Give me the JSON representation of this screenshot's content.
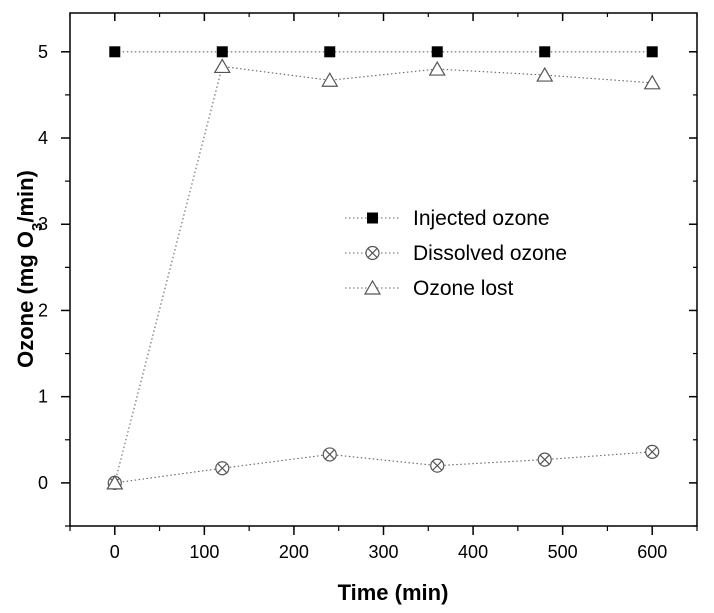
{
  "chart_data": {
    "type": "scatter",
    "xlabel": "Time (min)",
    "ylabel_parts": {
      "before": "Ozone (mg O",
      "subscript": "3",
      "after": "/min)"
    },
    "xlim": [
      -50,
      650
    ],
    "ylim": [
      -0.5,
      5.45
    ],
    "x_ticks": [
      0,
      100,
      200,
      300,
      400,
      500,
      600
    ],
    "y_ticks": [
      0,
      1,
      2,
      3,
      4,
      5
    ],
    "grid": false,
    "legend_position": "center-right",
    "series": [
      {
        "name": "Injected ozone",
        "marker": "filled-square",
        "x": [
          0,
          120,
          240,
          360,
          480,
          600
        ],
        "y": [
          5,
          5,
          5,
          5,
          5,
          5
        ]
      },
      {
        "name": "Dissolved ozone",
        "marker": "crossed-circle",
        "x": [
          0,
          120,
          240,
          360,
          480,
          600
        ],
        "y": [
          0,
          0.17,
          0.33,
          0.2,
          0.27,
          0.36
        ]
      },
      {
        "name": "Ozone lost",
        "marker": "open-triangle",
        "x": [
          0,
          120,
          240,
          360,
          480,
          600
        ],
        "y": [
          0,
          4.83,
          4.67,
          4.8,
          4.73,
          4.64
        ]
      }
    ]
  }
}
